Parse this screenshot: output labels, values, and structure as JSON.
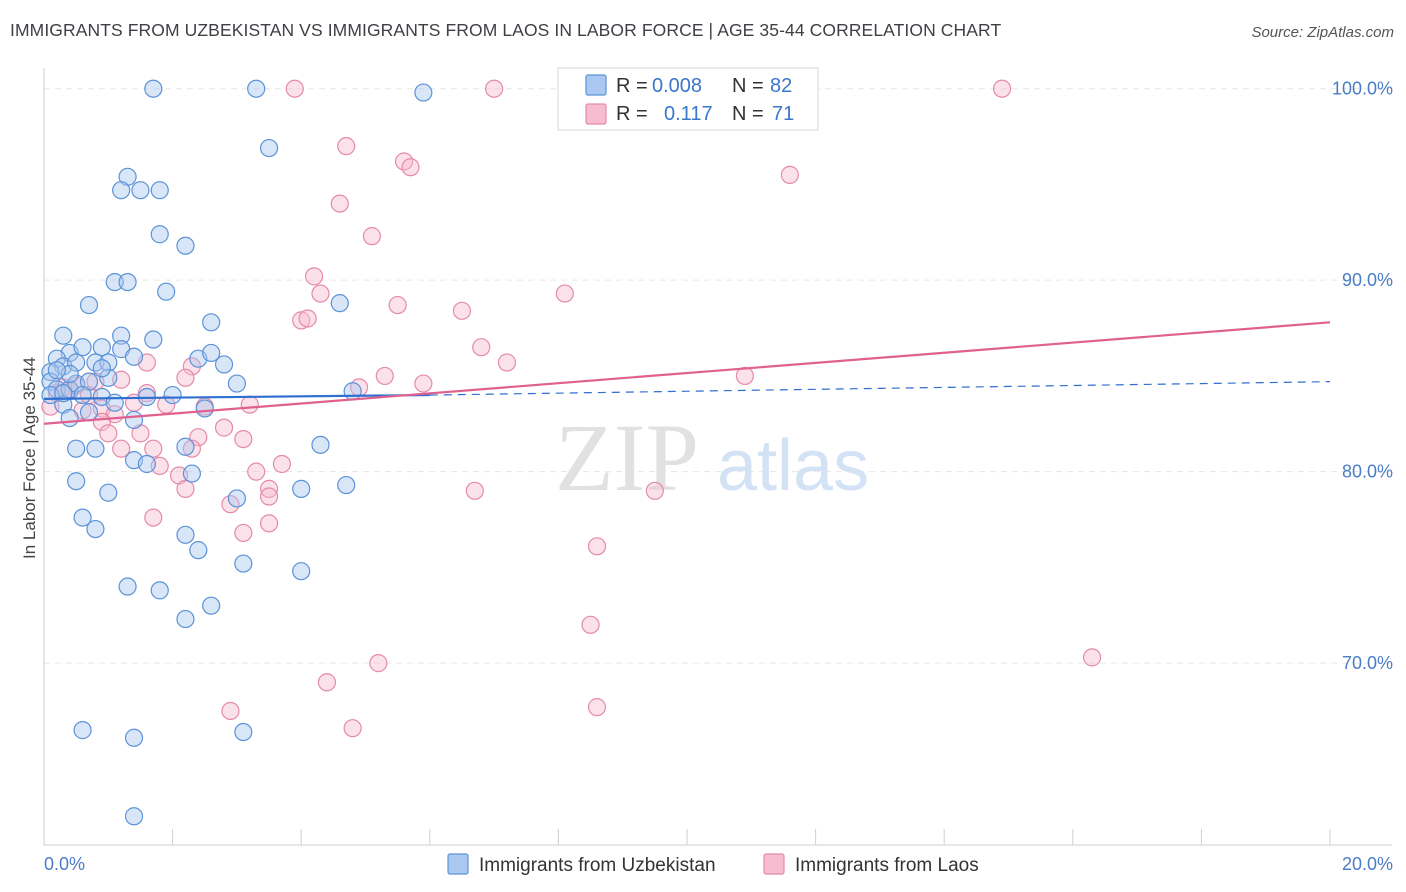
{
  "title": "IMMIGRANTS FROM UZBEKISTAN VS IMMIGRANTS FROM LAOS IN LABOR FORCE | AGE 35-44 CORRELATION CHART",
  "source": "Source: ZipAtlas.com",
  "colors": {
    "uzbekistan_fill": "#aac8f0",
    "uzbekistan_stroke": "#5b93d8",
    "uzbekistan_line": "#2f6fcf",
    "laos_fill": "#f6bdd0",
    "laos_stroke": "#e58aaa",
    "laos_line": "#e0608f",
    "tick_text": "#4a7cc7"
  },
  "legend": {
    "r_label": "R =",
    "n_label": "N =",
    "rows": [
      {
        "series": "Immigrants from Uzbekistan",
        "r": "0.008",
        "n": "82"
      },
      {
        "series": "Immigrants from Laos",
        "r": "0.117",
        "n": "71"
      }
    ]
  },
  "watermark": {
    "zip": "ZIP",
    "atlas": "atlas"
  },
  "chart_data": {
    "type": "scatter",
    "title": "IMMIGRANTS FROM UZBEKISTAN VS IMMIGRANTS FROM LAOS IN LABOR FORCE | AGE 35-44 CORRELATION CHART",
    "xlabel": "",
    "ylabel": "In Labor Force | Age 35-44",
    "xlim": [
      0,
      20
    ],
    "ylim": [
      60.5,
      101.5
    ],
    "x_tick_labels": [
      "0.0%",
      "20.0%"
    ],
    "y_ticks": [
      70,
      80,
      90,
      100
    ],
    "y_tick_labels": [
      "70.0%",
      "80.0%",
      "90.0%",
      "100.0%"
    ],
    "series": [
      {
        "name": "Immigrants from Uzbekistan",
        "r": 0.008,
        "n": 82,
        "trend": {
          "x0": 0,
          "y0": 83.8,
          "x1": 6,
          "y1": 84.0,
          "dash_to_x": 20,
          "dash_to_y": 84.7
        },
        "points": [
          [
            1.7,
            100
          ],
          [
            3.3,
            100
          ],
          [
            5.9,
            99.8
          ],
          [
            3.5,
            96.9
          ],
          [
            1.3,
            95.4
          ],
          [
            1.2,
            94.7
          ],
          [
            1.5,
            94.7
          ],
          [
            1.8,
            94.7
          ],
          [
            1.8,
            92.4
          ],
          [
            2.2,
            91.8
          ],
          [
            1.1,
            89.9
          ],
          [
            1.3,
            89.9
          ],
          [
            0.7,
            88.7
          ],
          [
            1.9,
            89.4
          ],
          [
            4.6,
            88.8
          ],
          [
            2.6,
            87.8
          ],
          [
            0.3,
            87.1
          ],
          [
            0.4,
            86.2
          ],
          [
            0.6,
            86.5
          ],
          [
            0.9,
            86.5
          ],
          [
            1.2,
            87.1
          ],
          [
            1.7,
            86.9
          ],
          [
            0.2,
            85.9
          ],
          [
            0.3,
            85.5
          ],
          [
            0.1,
            85.2
          ],
          [
            0.5,
            85.7
          ],
          [
            0.8,
            85.7
          ],
          [
            1.0,
            85.7
          ],
          [
            1.2,
            86.4
          ],
          [
            1.4,
            86.0
          ],
          [
            2.4,
            85.9
          ],
          [
            2.8,
            85.6
          ],
          [
            0.1,
            84.7
          ],
          [
            0.2,
            84.3
          ],
          [
            0.4,
            84.3
          ],
          [
            0.5,
            84.6
          ],
          [
            0.7,
            84.7
          ],
          [
            1.0,
            84.9
          ],
          [
            0.3,
            83.5
          ],
          [
            0.6,
            84.0
          ],
          [
            0.9,
            83.9
          ],
          [
            1.6,
            83.9
          ],
          [
            2.0,
            84.0
          ],
          [
            0.4,
            82.8
          ],
          [
            0.7,
            83.1
          ],
          [
            1.4,
            82.7
          ],
          [
            2.5,
            83.3
          ],
          [
            2.2,
            81.3
          ],
          [
            0.5,
            81.2
          ],
          [
            0.8,
            81.2
          ],
          [
            1.4,
            80.6
          ],
          [
            1.6,
            80.4
          ],
          [
            2.3,
            79.9
          ],
          [
            4.3,
            81.4
          ],
          [
            0.5,
            79.5
          ],
          [
            1.0,
            78.9
          ],
          [
            3.0,
            78.6
          ],
          [
            4.0,
            79.1
          ],
          [
            4.7,
            79.3
          ],
          [
            0.6,
            77.6
          ],
          [
            0.8,
            77.0
          ],
          [
            2.2,
            76.7
          ],
          [
            2.4,
            75.9
          ],
          [
            3.1,
            75.2
          ],
          [
            4.0,
            74.8
          ],
          [
            1.3,
            74.0
          ],
          [
            1.8,
            73.8
          ],
          [
            2.6,
            73.0
          ],
          [
            2.2,
            72.3
          ],
          [
            0.6,
            66.5
          ],
          [
            1.4,
            66.1
          ],
          [
            3.1,
            66.4
          ],
          [
            1.4,
            62.0
          ],
          [
            0.1,
            84.0
          ],
          [
            0.3,
            84.1
          ],
          [
            0.4,
            85.1
          ],
          [
            0.9,
            85.4
          ],
          [
            1.1,
            83.6
          ],
          [
            3.0,
            84.6
          ],
          [
            2.6,
            86.2
          ],
          [
            4.8,
            84.2
          ],
          [
            0.2,
            85.3
          ]
        ]
      },
      {
        "name": "Immigrants from Laos",
        "r": 0.117,
        "n": 71,
        "trend": {
          "x0": 0,
          "y0": 82.5,
          "x1": 20,
          "y1": 87.8
        },
        "points": [
          [
            3.9,
            100
          ],
          [
            7.0,
            100
          ],
          [
            14.9,
            100
          ],
          [
            4.7,
            97.0
          ],
          [
            5.6,
            96.2
          ],
          [
            5.7,
            95.9
          ],
          [
            11.6,
            95.5
          ],
          [
            4.6,
            94.0
          ],
          [
            5.1,
            92.3
          ],
          [
            4.2,
            90.2
          ],
          [
            8.1,
            89.3
          ],
          [
            4.3,
            89.3
          ],
          [
            5.5,
            88.7
          ],
          [
            4.0,
            87.9
          ],
          [
            4.1,
            88.0
          ],
          [
            6.5,
            88.4
          ],
          [
            6.8,
            86.5
          ],
          [
            7.2,
            85.7
          ],
          [
            1.6,
            85.7
          ],
          [
            2.3,
            85.5
          ],
          [
            5.3,
            85.0
          ],
          [
            2.2,
            84.9
          ],
          [
            4.9,
            84.4
          ],
          [
            5.9,
            84.6
          ],
          [
            10.9,
            85.0
          ],
          [
            0.2,
            84.1
          ],
          [
            0.4,
            84.2
          ],
          [
            0.5,
            84.5
          ],
          [
            0.7,
            84.0
          ],
          [
            0.8,
            84.7
          ],
          [
            1.2,
            84.8
          ],
          [
            1.6,
            84.1
          ],
          [
            0.1,
            83.4
          ],
          [
            0.6,
            83.2
          ],
          [
            0.9,
            83.3
          ],
          [
            1.1,
            83.0
          ],
          [
            1.4,
            83.6
          ],
          [
            1.9,
            83.5
          ],
          [
            2.5,
            83.4
          ],
          [
            3.2,
            83.5
          ],
          [
            0.9,
            82.6
          ],
          [
            1.5,
            82.0
          ],
          [
            2.4,
            81.8
          ],
          [
            2.8,
            82.3
          ],
          [
            3.1,
            81.7
          ],
          [
            1.2,
            81.2
          ],
          [
            1.7,
            81.2
          ],
          [
            2.3,
            81.2
          ],
          [
            3.7,
            80.4
          ],
          [
            1.8,
            80.3
          ],
          [
            2.1,
            79.8
          ],
          [
            2.2,
            79.1
          ],
          [
            3.3,
            80.0
          ],
          [
            3.5,
            79.1
          ],
          [
            3.5,
            78.7
          ],
          [
            6.7,
            79.0
          ],
          [
            9.5,
            79.0
          ],
          [
            2.9,
            78.3
          ],
          [
            1.7,
            77.6
          ],
          [
            3.5,
            77.3
          ],
          [
            3.1,
            76.8
          ],
          [
            8.6,
            76.1
          ],
          [
            8.5,
            72.0
          ],
          [
            5.2,
            70.0
          ],
          [
            4.4,
            69.0
          ],
          [
            2.9,
            67.5
          ],
          [
            8.6,
            67.7
          ],
          [
            4.8,
            66.6
          ],
          [
            16.3,
            70.3
          ],
          [
            0.3,
            84.4
          ],
          [
            1.0,
            82.0
          ]
        ]
      }
    ]
  },
  "bottom_legend": [
    {
      "label": "Immigrants from Uzbekistan"
    },
    {
      "label": "Immigrants from Laos"
    }
  ]
}
